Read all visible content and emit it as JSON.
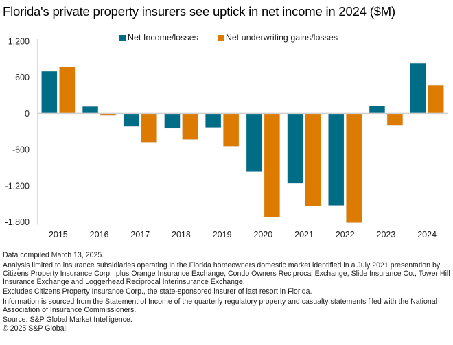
{
  "title": "Florida's private property insurers see uptick in net income in 2024 ($M)",
  "colors": {
    "net_income": "#006D86",
    "underwriting": "#DD7A00",
    "axis": "#D0D0D0"
  },
  "chart_data": {
    "type": "bar",
    "title": "Florida's private property insurers see uptick in net income in 2024 ($M)",
    "xlabel": "",
    "ylabel": "",
    "categories": [
      "2015",
      "2016",
      "2017",
      "2018",
      "2019",
      "2020",
      "2021",
      "2022",
      "2023",
      "2024"
    ],
    "series": [
      {
        "name": "Net Income/losses",
        "values": [
          700,
          118,
          -217,
          -245,
          -233,
          -972,
          -1161,
          -1530,
          125,
          836
        ]
      },
      {
        "name": "Net underwriting gains/losses",
        "values": [
          778,
          -35,
          -480,
          -435,
          -548,
          -1723,
          -1537,
          -1814,
          -194,
          471
        ]
      }
    ],
    "ylim": [
      -1800,
      1200
    ],
    "yticks": [
      1200,
      600,
      0,
      -600,
      -1200,
      -1800
    ],
    "ytick_labels": [
      "1,200",
      "600",
      "0",
      "-600",
      "-1,200",
      "-1,800"
    ],
    "grid": false,
    "legend_position": "top"
  },
  "notes": [
    "Data compiled March 13, 2025.",
    "Analysis limited to insurance subsidiaries operating in the Florida homeowners domestic market identified in a July 2021 presentation by Citizens Property Insurance Corp., plus Orange Insurance Exchange, Condo Owners Reciprocal Exchange, Slide Insurance Co., Tower Hill Insurance Exchange and Loggerhead Reciprocal Interinsurance Exchange.",
    "Excludes Citizens Property Insurance Corp., the state-sponsored insurer of last resort in Florida.",
    "Information is sourced from the Statement of Income of the quarterly regulatory property and casualty statements filed with the National Association of Insurance Commissioners.",
    "Source: S&P Global Market Intelligence.",
    "© 2025 S&P Global."
  ]
}
